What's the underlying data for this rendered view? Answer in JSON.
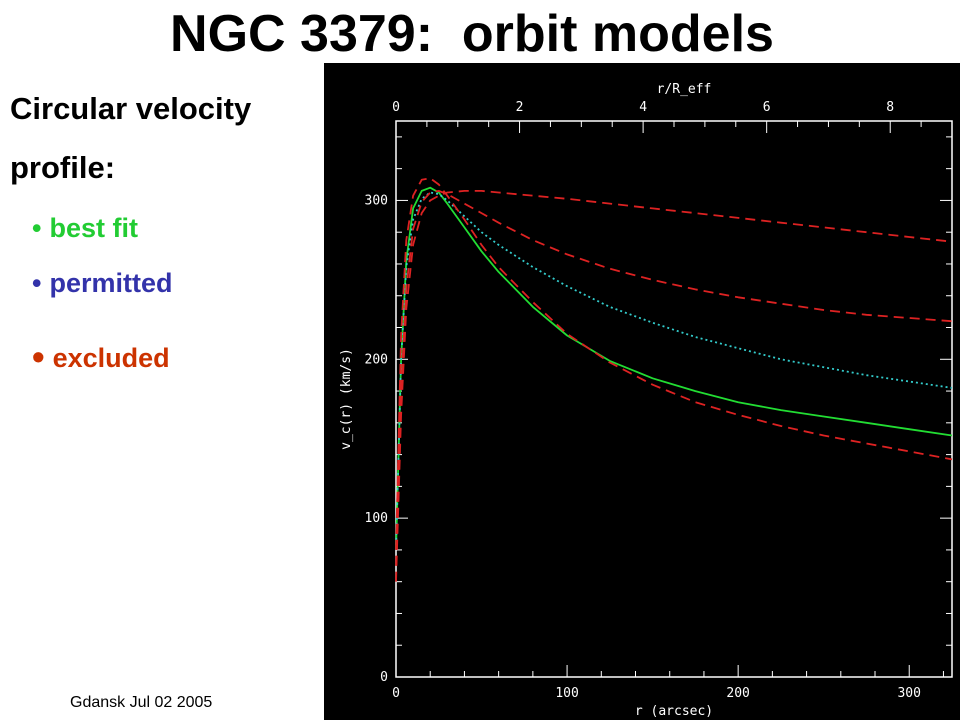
{
  "slide": {
    "title": "NGC 3379:  orbit models",
    "heading_line1": "Circular velocity",
    "heading_line2": "profile:",
    "legend": [
      {
        "bullet": "•",
        "label": "best fit",
        "color": "#22cc33"
      },
      {
        "bullet": "•",
        "label": "permitted",
        "color": "#3333aa"
      },
      {
        "bullet": "•",
        "label": "excluded",
        "color": "#cc3300"
      }
    ],
    "footer": "Gdansk Jul 02 2005"
  },
  "chart_data": {
    "type": "line",
    "background": "#000000",
    "xlabel": "r (arcsec)",
    "ylabel": "v_c(r) (km/s)",
    "top_xlabel": "r/R_eff",
    "xlim": [
      0,
      325
    ],
    "ylim": [
      0,
      350
    ],
    "x_ticks": [
      "0",
      "100",
      "200",
      "300"
    ],
    "y_ticks": [
      "0",
      "100",
      "200",
      "300"
    ],
    "top_ticks": [
      "0",
      "2",
      "4",
      "6",
      "8"
    ],
    "series": [
      {
        "color": "#22dd33",
        "style": "solid",
        "x": [
          0,
          3,
          6,
          10,
          15,
          20,
          25,
          30,
          40,
          50,
          60,
          80,
          100,
          125,
          150,
          175,
          200,
          225,
          250,
          275,
          300,
          325
        ],
        "y": [
          80,
          200,
          262,
          295,
          306,
          308,
          305,
          298,
          283,
          268,
          255,
          233,
          215,
          199,
          188,
          180,
          173,
          168,
          164,
          160,
          156,
          152
        ]
      },
      {
        "color": "#33cccc",
        "style": "dotted",
        "x": [
          0,
          3,
          6,
          10,
          15,
          20,
          25,
          30,
          40,
          50,
          60,
          80,
          100,
          125,
          150,
          175,
          200,
          225,
          250,
          275,
          300,
          325
        ],
        "y": [
          80,
          200,
          258,
          288,
          301,
          305,
          304,
          300,
          290,
          280,
          272,
          258,
          246,
          233,
          223,
          214,
          207,
          200,
          195,
          190,
          186,
          182
        ]
      },
      {
        "color": "#dd2222",
        "style": "dashed",
        "x": [
          0,
          3,
          6,
          10,
          15,
          20,
          25,
          30,
          40,
          50,
          60,
          80,
          100,
          125,
          150,
          175,
          200,
          225,
          250,
          275,
          300,
          325
        ],
        "y": [
          80,
          215,
          275,
          303,
          313,
          314,
          310,
          303,
          288,
          272,
          258,
          236,
          216,
          198,
          184,
          173,
          165,
          158,
          152,
          147,
          142,
          137
        ]
      },
      {
        "color": "#dd2222",
        "style": "dashed",
        "x": [
          0,
          3,
          6,
          10,
          15,
          20,
          25,
          30,
          40,
          50,
          60,
          80,
          100,
          125,
          150,
          175,
          200,
          225,
          250,
          275,
          300,
          325
        ],
        "y": [
          70,
          180,
          245,
          282,
          299,
          305,
          306,
          304,
          298,
          292,
          286,
          275,
          266,
          257,
          250,
          244,
          239,
          235,
          231,
          228,
          226,
          224
        ]
      },
      {
        "color": "#dd2222",
        "style": "dashed",
        "x": [
          0,
          3,
          6,
          10,
          15,
          20,
          25,
          30,
          40,
          50,
          60,
          80,
          100,
          125,
          150,
          175,
          200,
          225,
          250,
          275,
          300,
          325
        ],
        "y": [
          60,
          165,
          232,
          272,
          292,
          300,
          303,
          305,
          306,
          306,
          305,
          303,
          301,
          298,
          295,
          292,
          289,
          286,
          283,
          280,
          277,
          274
        ]
      }
    ]
  }
}
